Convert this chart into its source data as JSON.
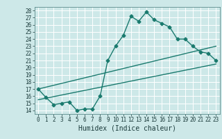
{
  "xlabel": "Humidex (Indice chaleur)",
  "bg_color": "#cde8e8",
  "line_color": "#1a7a6e",
  "grid_color": "#b8d8d8",
  "xlim": [
    -0.5,
    23.5
  ],
  "ylim": [
    13.5,
    28.5
  ],
  "xticks": [
    0,
    1,
    2,
    3,
    4,
    5,
    6,
    7,
    8,
    9,
    10,
    11,
    12,
    13,
    14,
    15,
    16,
    17,
    18,
    19,
    20,
    21,
    22,
    23
  ],
  "yticks": [
    14,
    15,
    16,
    17,
    18,
    19,
    20,
    21,
    22,
    23,
    24,
    25,
    26,
    27,
    28
  ],
  "line1_x": [
    0,
    1,
    2,
    3,
    4,
    5,
    6,
    7,
    8,
    9,
    10,
    11,
    12,
    13,
    14,
    15,
    16,
    17,
    18,
    19,
    20,
    21,
    22,
    23
  ],
  "line1_y": [
    17.0,
    15.8,
    14.8,
    15.0,
    15.2,
    14.0,
    14.2,
    14.2,
    16.0,
    21.0,
    23.0,
    24.5,
    27.2,
    26.5,
    27.8,
    26.7,
    26.2,
    25.7,
    24.0,
    24.0,
    23.0,
    22.2,
    22.0,
    21.0
  ],
  "line2_x": [
    0,
    23
  ],
  "line2_y": [
    15.5,
    20.5
  ],
  "line3_x": [
    0,
    23
  ],
  "line3_y": [
    17.0,
    23.0
  ],
  "marker": "D",
  "markersize": 2.5,
  "linewidth": 1.0,
  "tick_fontsize": 5.5,
  "xlabel_fontsize": 7.0
}
